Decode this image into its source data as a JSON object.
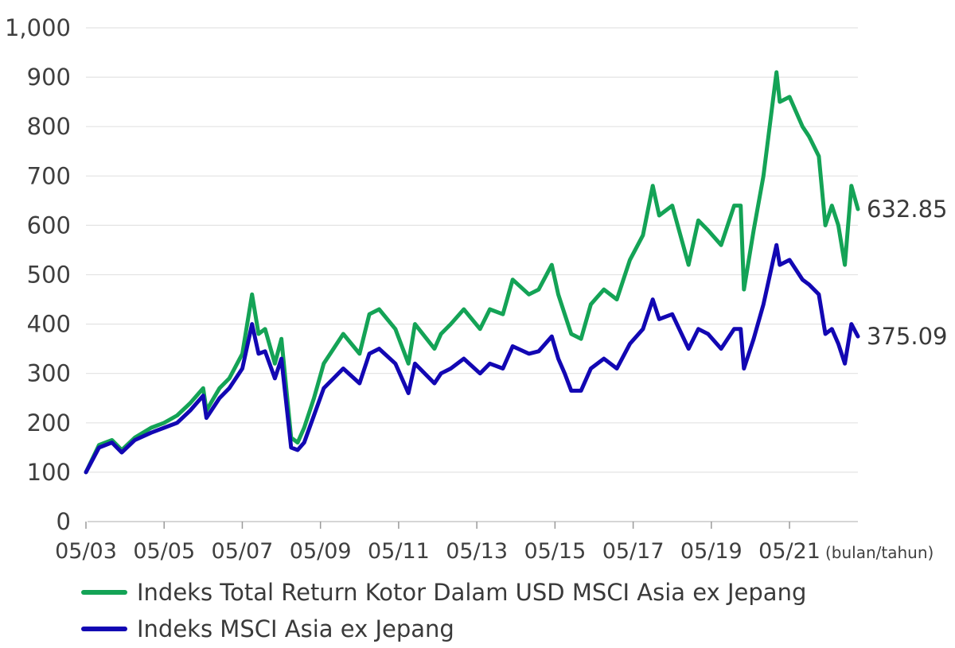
{
  "chart_data": {
    "type": "line",
    "title": "",
    "xlabel": "",
    "ylabel": "",
    "x_unit_label": "(bulan/tahun)",
    "ylim": [
      0,
      1000
    ],
    "yticks": [
      0,
      100,
      200,
      300,
      400,
      500,
      600,
      700,
      800,
      900,
      1000
    ],
    "ytick_labels": [
      "0",
      "100",
      "200",
      "300",
      "400",
      "500",
      "600",
      "700",
      "800",
      "900",
      "1,000"
    ],
    "x_ticks": [
      "05/03",
      "05/05",
      "05/07",
      "05/09",
      "05/11",
      "05/13",
      "05/15",
      "05/17",
      "05/19",
      "05/21"
    ],
    "xlim": [
      "2003-05",
      "2023-02"
    ],
    "grid": "horizontal",
    "legend_position": "bottom",
    "series": [
      {
        "name": "Indeks Total Return Kotor Dalam USD MSCI Asia ex Jepang",
        "color": "#14a356",
        "end_label": "632.85",
        "x": [
          "2003-05",
          "2003-09",
          "2004-01",
          "2004-04",
          "2004-08",
          "2005-01",
          "2005-05",
          "2005-09",
          "2006-01",
          "2006-05",
          "2006-06",
          "2006-10",
          "2007-01",
          "2007-05",
          "2007-08",
          "2007-10",
          "2007-12",
          "2008-03",
          "2008-05",
          "2008-08",
          "2008-10",
          "2008-12",
          "2009-03",
          "2009-06",
          "2009-09",
          "2009-12",
          "2010-05",
          "2010-08",
          "2010-11",
          "2011-04",
          "2011-08",
          "2011-10",
          "2012-04",
          "2012-06",
          "2012-09",
          "2013-01",
          "2013-06",
          "2013-09",
          "2014-01",
          "2014-04",
          "2014-09",
          "2014-12",
          "2015-04",
          "2015-06",
          "2015-08",
          "2015-10",
          "2016-01",
          "2016-04",
          "2016-08",
          "2016-12",
          "2017-04",
          "2017-08",
          "2017-11",
          "2018-01",
          "2018-05",
          "2018-10",
          "2019-01",
          "2019-04",
          "2019-08",
          "2019-12",
          "2020-02",
          "2020-03",
          "2020-06",
          "2020-09",
          "2021-01",
          "2021-02",
          "2021-05",
          "2021-09",
          "2021-11",
          "2022-02",
          "2022-04",
          "2022-06",
          "2022-08",
          "2022-10",
          "2022-12",
          "2023-02"
        ],
        "y": [
          100,
          155,
          165,
          145,
          170,
          190,
          200,
          215,
          240,
          270,
          225,
          270,
          290,
          340,
          460,
          380,
          390,
          320,
          370,
          170,
          160,
          190,
          250,
          320,
          350,
          380,
          340,
          420,
          430,
          390,
          320,
          400,
          350,
          380,
          400,
          430,
          390,
          430,
          420,
          490,
          460,
          470,
          520,
          460,
          420,
          380,
          370,
          440,
          470,
          450,
          530,
          580,
          680,
          620,
          640,
          520,
          610,
          590,
          560,
          640,
          640,
          470,
          590,
          700,
          910,
          850,
          860,
          800,
          780,
          740,
          600,
          640,
          600,
          520,
          680,
          632.85
        ]
      },
      {
        "name": "Indeks MSCI Asia ex Jepang",
        "color": "#1207b3",
        "end_label": "375.09",
        "x": [
          "2003-05",
          "2003-09",
          "2004-01",
          "2004-04",
          "2004-08",
          "2005-01",
          "2005-05",
          "2005-09",
          "2006-01",
          "2006-05",
          "2006-06",
          "2006-10",
          "2007-01",
          "2007-05",
          "2007-08",
          "2007-10",
          "2007-12",
          "2008-03",
          "2008-05",
          "2008-08",
          "2008-10",
          "2008-12",
          "2009-03",
          "2009-06",
          "2009-09",
          "2009-12",
          "2010-05",
          "2010-08",
          "2010-11",
          "2011-04",
          "2011-08",
          "2011-10",
          "2012-04",
          "2012-06",
          "2012-09",
          "2013-01",
          "2013-06",
          "2013-09",
          "2014-01",
          "2014-04",
          "2014-09",
          "2014-12",
          "2015-04",
          "2015-06",
          "2015-08",
          "2015-10",
          "2016-01",
          "2016-04",
          "2016-08",
          "2016-12",
          "2017-04",
          "2017-08",
          "2017-11",
          "2018-01",
          "2018-05",
          "2018-10",
          "2019-01",
          "2019-04",
          "2019-08",
          "2019-12",
          "2020-02",
          "2020-03",
          "2020-06",
          "2020-09",
          "2021-01",
          "2021-02",
          "2021-05",
          "2021-09",
          "2021-11",
          "2022-02",
          "2022-04",
          "2022-06",
          "2022-08",
          "2022-10",
          "2022-12",
          "2023-02"
        ],
        "y": [
          100,
          150,
          160,
          140,
          165,
          180,
          190,
          200,
          225,
          255,
          210,
          250,
          270,
          310,
          400,
          340,
          345,
          290,
          330,
          150,
          145,
          160,
          215,
          270,
          290,
          310,
          280,
          340,
          350,
          320,
          260,
          320,
          280,
          300,
          310,
          330,
          300,
          320,
          310,
          355,
          340,
          345,
          375,
          330,
          300,
          265,
          265,
          310,
          330,
          310,
          360,
          390,
          450,
          410,
          420,
          350,
          390,
          380,
          350,
          390,
          390,
          310,
          370,
          440,
          560,
          520,
          530,
          490,
          480,
          460,
          380,
          390,
          360,
          320,
          400,
          375.09
        ]
      }
    ]
  }
}
